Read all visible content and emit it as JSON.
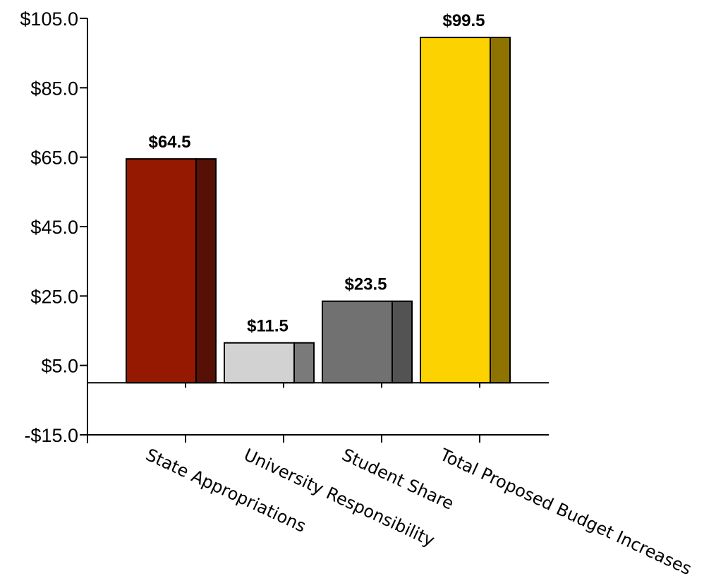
{
  "chart_data": {
    "type": "bar",
    "categories": [
      "State Appropriations",
      "University Responsibility",
      "Student Share",
      "Total Proposed Budget Increases"
    ],
    "values": [
      64.5,
      11.5,
      23.5,
      99.5
    ],
    "value_labels": [
      "$64.5",
      "$11.5",
      "$23.5",
      "$99.5"
    ],
    "ylim": [
      -15,
      105
    ],
    "yticks": [
      -15,
      5,
      25,
      45,
      65,
      85,
      105
    ],
    "ytick_labels": [
      "-$15.0",
      "$5.0",
      "$25.0",
      "$45.0",
      "$65.0",
      "$85.0",
      "$105.0"
    ],
    "baseline": 0,
    "colors": {
      "front": [
        "#941900",
        "#d2d2d2",
        "#717171",
        "#fcd200"
      ],
      "side": [
        "#561006",
        "#7a7a7a",
        "#535353",
        "#8e7300"
      ]
    },
    "grid": false,
    "legend": "none"
  }
}
